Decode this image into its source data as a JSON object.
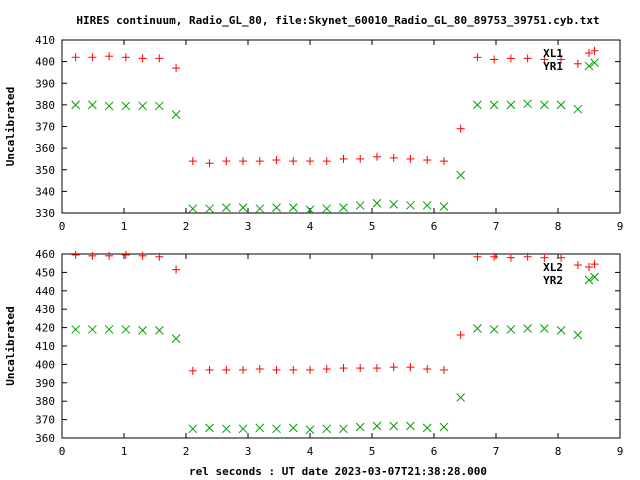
{
  "title": "HIRES continuum, Radio_GL_80, file:Skynet_60010_Radio_GL_80_89753_39751.cyb.txt",
  "xlabel": "rel seconds : UT date 2023-03-07T21:38:28.000",
  "colors": {
    "L": "#ff0000",
    "R": "#00a000",
    "axis": "#000000"
  },
  "chart_data": [
    {
      "type": "scatter",
      "ylabel": "Uncalibrated",
      "xlim": [
        0,
        9
      ],
      "ylim": [
        330,
        410
      ],
      "xticks": [
        0,
        1,
        2,
        3,
        4,
        5,
        6,
        7,
        8,
        9
      ],
      "yticks": [
        330,
        340,
        350,
        360,
        370,
        380,
        390,
        400,
        410
      ],
      "legend_placement": "top-right",
      "series": [
        {
          "name": "XL1",
          "marker": "plus",
          "color": "#ff0000",
          "x": [
            0.22,
            0.49,
            0.76,
            1.03,
            1.3,
            1.57,
            1.84,
            2.11,
            2.38,
            2.65,
            2.92,
            3.19,
            3.46,
            3.73,
            4.0,
            4.27,
            4.54,
            4.81,
            5.08,
            5.35,
            5.62,
            5.89,
            6.16,
            6.43,
            6.7,
            6.97,
            7.24,
            7.51,
            7.78,
            8.05,
            8.32,
            8.59
          ],
          "y": [
            402,
            402,
            402.5,
            402,
            401.5,
            401.5,
            397,
            354,
            353,
            354,
            354,
            354,
            354.5,
            354,
            354,
            354,
            355,
            355,
            356,
            355.5,
            355,
            354.5,
            354,
            369,
            402,
            401,
            401.5,
            401.5,
            401,
            401,
            399,
            405
          ]
        },
        {
          "name": "YR1",
          "marker": "cross",
          "color": "#00a000",
          "x": [
            0.22,
            0.49,
            0.76,
            1.03,
            1.3,
            1.57,
            1.84,
            2.11,
            2.38,
            2.65,
            2.92,
            3.19,
            3.46,
            3.73,
            4.0,
            4.27,
            4.54,
            4.81,
            5.08,
            5.35,
            5.62,
            5.89,
            6.16,
            6.43,
            6.7,
            6.97,
            7.24,
            7.51,
            7.78,
            8.05,
            8.32,
            8.59
          ],
          "y": [
            380,
            380,
            379.5,
            379.5,
            379.5,
            379.5,
            375.5,
            332,
            332,
            332.5,
            332.5,
            332,
            332.5,
            332.5,
            331.5,
            332,
            332.5,
            333.5,
            334.5,
            334,
            333.5,
            333.5,
            333,
            347.5,
            380,
            380,
            380,
            380.5,
            380,
            380,
            378,
            399.5
          ]
        }
      ]
    },
    {
      "type": "scatter",
      "ylabel": "Uncalibrated",
      "xlim": [
        0,
        9
      ],
      "ylim": [
        360,
        460
      ],
      "xticks": [
        0,
        1,
        2,
        3,
        4,
        5,
        6,
        7,
        8,
        9
      ],
      "yticks": [
        360,
        370,
        380,
        390,
        400,
        410,
        420,
        430,
        440,
        450,
        460
      ],
      "legend_placement": "top-right",
      "series": [
        {
          "name": "XL2",
          "marker": "plus",
          "color": "#ff0000",
          "x": [
            0.22,
            0.49,
            0.76,
            1.03,
            1.3,
            1.57,
            1.84,
            2.11,
            2.38,
            2.65,
            2.92,
            3.19,
            3.46,
            3.73,
            4.0,
            4.27,
            4.54,
            4.81,
            5.08,
            5.35,
            5.62,
            5.89,
            6.16,
            6.43,
            6.7,
            6.97,
            7.24,
            7.51,
            7.78,
            8.05,
            8.32,
            8.59
          ],
          "y": [
            459.5,
            459,
            459,
            459.5,
            459,
            458.5,
            451.5,
            396.5,
            397,
            397,
            397,
            397.5,
            397,
            397,
            397,
            397.5,
            398,
            398,
            398,
            398.5,
            398.5,
            397.5,
            397,
            416,
            458.5,
            458.5,
            458,
            458.5,
            458,
            458,
            454,
            454.5
          ]
        },
        {
          "name": "YR2",
          "marker": "cross",
          "color": "#00a000",
          "x": [
            0.22,
            0.49,
            0.76,
            1.03,
            1.3,
            1.57,
            1.84,
            2.11,
            2.38,
            2.65,
            2.92,
            3.19,
            3.46,
            3.73,
            4.0,
            4.27,
            4.54,
            4.81,
            5.08,
            5.35,
            5.62,
            5.89,
            6.16,
            6.43,
            6.7,
            6.97,
            7.24,
            7.51,
            7.78,
            8.05,
            8.32,
            8.59
          ],
          "y": [
            419,
            419,
            419,
            419,
            418.5,
            418.5,
            414,
            365,
            365.5,
            365,
            365,
            365.5,
            365,
            365.5,
            364.5,
            365,
            365,
            366,
            366.5,
            366.5,
            366.5,
            365.5,
            366,
            382,
            419.5,
            419,
            419,
            419.5,
            419.5,
            418.5,
            416,
            447.5
          ]
        }
      ]
    }
  ]
}
